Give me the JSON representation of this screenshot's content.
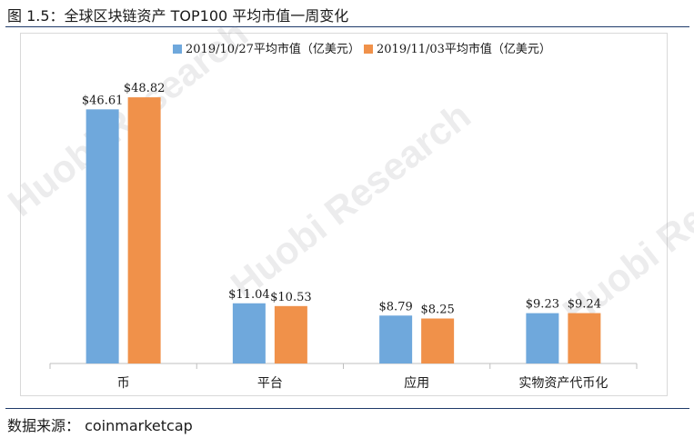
{
  "figure": {
    "title": "图 1.5：全球区块链资产 TOP100 平均市值一周变化",
    "source": "数据来源：  coinmarketcap",
    "watermark": "Huobi Research"
  },
  "colors": {
    "series1": "#6fa8dc",
    "series2": "#f0914a",
    "axis": "#bfbfbf",
    "text": "#1a1a1a"
  },
  "chart_data": {
    "type": "bar",
    "title": "",
    "xlabel": "",
    "ylabel": "",
    "categories": [
      "币",
      "平台",
      "应用",
      "实物资产代币化"
    ],
    "series": [
      {
        "name": "2019/10/27平均市值（亿美元）",
        "values": [
          46.61,
          11.04,
          8.79,
          9.23
        ],
        "labels": [
          "$46.61",
          "$11.04",
          "$8.79",
          "$9.23"
        ]
      },
      {
        "name": "2019/11/03平均市值（亿美元）",
        "values": [
          48.82,
          10.53,
          8.25,
          9.24
        ],
        "labels": [
          "$48.82",
          "$10.53",
          "$8.25",
          "$9.24"
        ]
      }
    ],
    "ylim": [
      0,
      60
    ],
    "grid": false,
    "legend": "top"
  }
}
